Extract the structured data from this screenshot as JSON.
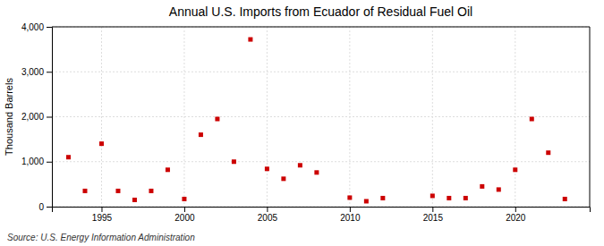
{
  "chart_data": {
    "type": "scatter",
    "title": "Annual U.S. Imports from Ecuador of Residual Fuel Oil",
    "y_label": "Thousand Barrels",
    "source": "Source: U.S. Energy Information Administration",
    "x": [
      1993,
      1994,
      1995,
      1996,
      1997,
      1998,
      1999,
      2000,
      2001,
      2002,
      2003,
      2004,
      2005,
      2006,
      2007,
      2008,
      2010,
      2011,
      2012,
      2015,
      2016,
      2017,
      2018,
      2019,
      2020,
      2021,
      2022,
      2023
    ],
    "values": [
      1100,
      350,
      1400,
      350,
      150,
      350,
      820,
      170,
      1600,
      1950,
      1000,
      3720,
      840,
      620,
      920,
      760,
      200,
      120,
      190,
      240,
      190,
      190,
      450,
      380,
      820,
      1950,
      1200,
      170
    ],
    "color": "#cc0000",
    "marker": "square",
    "xlim": [
      1992,
      2024.5
    ],
    "ylim": [
      0,
      4000
    ],
    "xticks": [
      1995,
      2000,
      2005,
      2010,
      2015,
      2020
    ],
    "yticks": [
      0,
      {
        "value": 1000,
        "label": "1,000"
      },
      {
        "value": 2000,
        "label": "2,000"
      },
      {
        "value": 3000,
        "label": "3,000"
      },
      {
        "value": 4000,
        "label": "4,000"
      }
    ],
    "grid": true
  }
}
